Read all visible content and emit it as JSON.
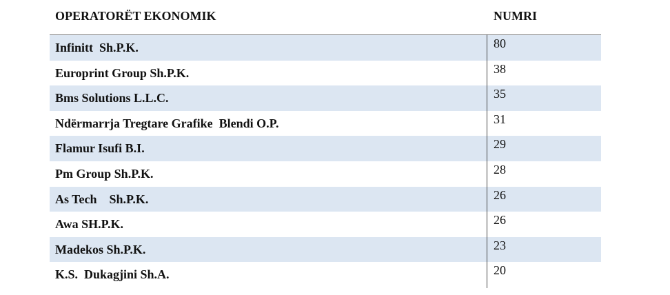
{
  "table": {
    "header": [
      "OPERATORËT EKONOMIK",
      "NUMRI"
    ],
    "rows": [
      [
        "Infinitt  Sh.P.K.",
        80
      ],
      [
        "Europrint Group Sh.P.K.",
        38
      ],
      [
        "Bms Solutions L.L.C.",
        35
      ],
      [
        "Ndërmarrja Tregtare Grafike  Blendi O.P.",
        31
      ],
      [
        "Flamur Isufi B.I.",
        29
      ],
      [
        "Pm Group Sh.P.K.",
        28
      ],
      [
        "As Tech    Sh.P.K.",
        26
      ],
      [
        "Awa SH.P.K.",
        26
      ],
      [
        "Madekos Sh.P.K.",
        23
      ],
      [
        "K.S.  Dukagjini Sh.A.",
        20
      ]
    ]
  }
}
